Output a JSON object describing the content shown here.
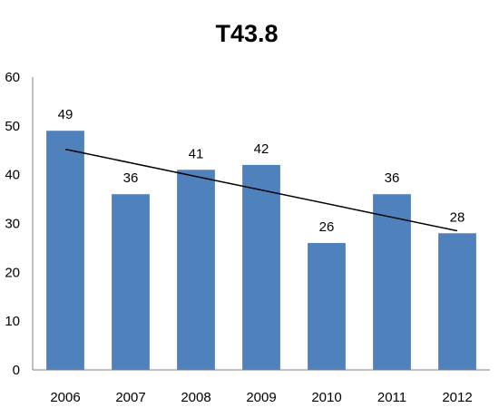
{
  "chart_data": {
    "type": "bar",
    "title": "T43.8",
    "categories": [
      "2006",
      "2007",
      "2008",
      "2009",
      "2010",
      "2011",
      "2012"
    ],
    "values": [
      49,
      36,
      41,
      42,
      26,
      36,
      28
    ],
    "data_labels": [
      "49",
      "36",
      "41",
      "42",
      "26",
      "36",
      "28"
    ],
    "y_ticks": [
      "0",
      "10",
      "20",
      "30",
      "40",
      "50",
      "60"
    ],
    "ylim": [
      0,
      60
    ],
    "grid": false,
    "legend": "none",
    "bar_color": "#4F81BD",
    "trendline": {
      "type": "linear",
      "color": "#000000"
    }
  }
}
